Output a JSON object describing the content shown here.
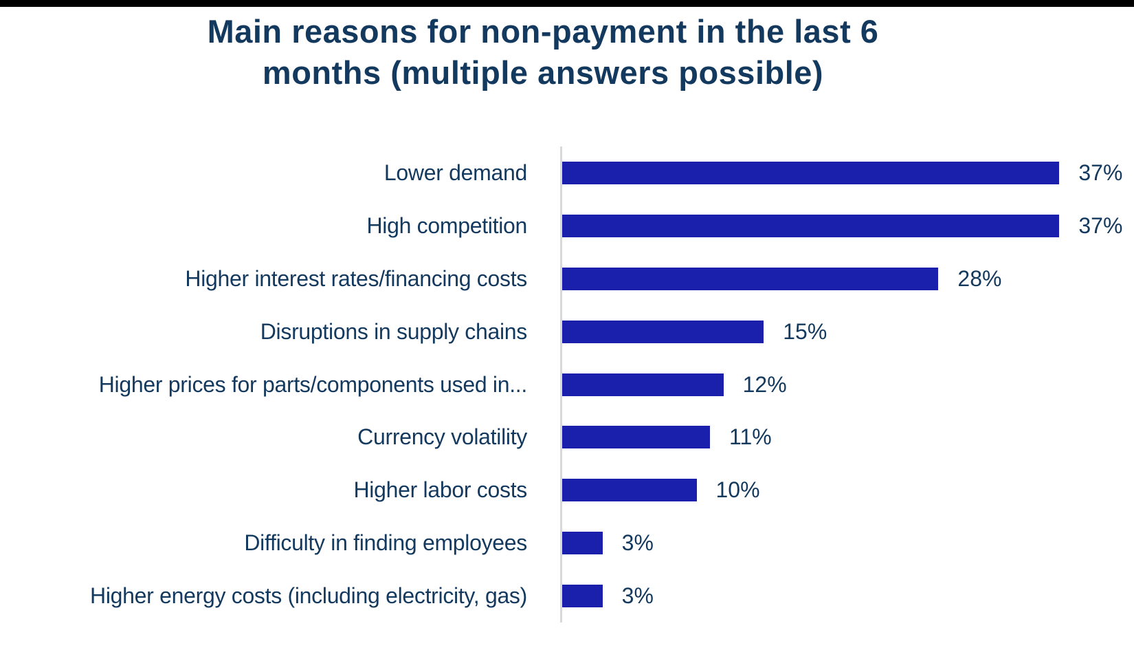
{
  "title": {
    "line1": "Main reasons for non-payment in the last 6",
    "line2": "months (multiple answers possible)"
  },
  "colors": {
    "bar": "#1B20AC",
    "text": "#14395E",
    "axis_line": "#D8D8D8",
    "top_border": "#000000",
    "background": "#FFFFFF"
  },
  "chart_data": {
    "type": "bar",
    "orientation": "horizontal",
    "title": "Main reasons for non-payment in the last 6 months (multiple answers possible)",
    "categories": [
      "Lower demand",
      "High competition",
      "Higher interest rates/financing costs",
      "Disruptions in supply chains",
      "Higher prices for parts/components used in...",
      "Currency volatility",
      "Higher labor costs",
      "Difficulty in finding employees",
      "Higher energy costs (including electricity, gas)"
    ],
    "values": [
      37,
      37,
      28,
      15,
      12,
      11,
      10,
      3,
      3
    ],
    "value_labels": [
      "37%",
      "37%",
      "28%",
      "15%",
      "12%",
      "11%",
      "10%",
      "3%",
      "3%"
    ],
    "unit": "%",
    "xlim": [
      0,
      40
    ],
    "grid": false,
    "legend": false,
    "data_labels": "outside-end",
    "category_labels_position": "left"
  }
}
